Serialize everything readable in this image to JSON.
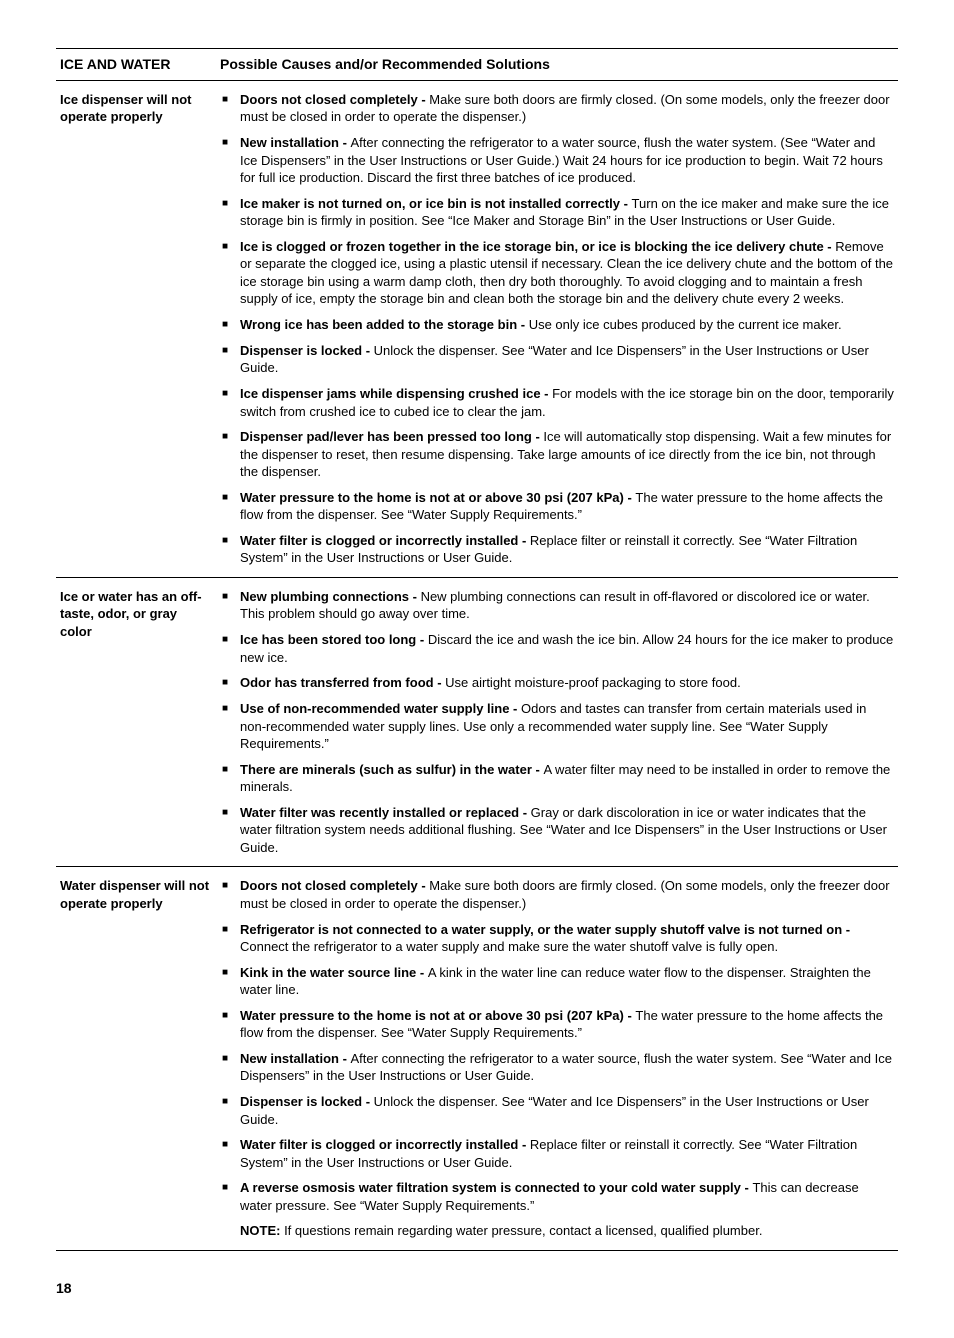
{
  "header": {
    "left": "ICE AND WATER",
    "right": "Possible Causes and/or Recommended Solutions"
  },
  "pageNumber": "18",
  "sections": [
    {
      "problem": "Ice dispenser will not operate properly",
      "items": [
        {
          "bold": "Doors not closed completely - ",
          "text": "Make sure both doors are firmly closed. (On some models, only the freezer door must be closed in order to operate the dispenser.)"
        },
        {
          "bold": "New installation - ",
          "text": "After connecting the refrigerator to a water source, flush the water system. (See “Water and Ice Dispensers” in the User Instructions or User Guide.) Wait 24 hours for ice production to begin. Wait 72 hours for full ice production. Discard the first three batches of ice produced."
        },
        {
          "bold": "Ice maker is not turned on, or ice bin is not installed correctly - ",
          "text": "Turn on the ice maker and make sure the ice storage bin is firmly in position. See “Ice Maker and Storage Bin” in the User Instructions or User Guide."
        },
        {
          "bold": "Ice is clogged or frozen together in the ice storage bin, or ice is blocking the ice delivery chute - ",
          "text": "Remove or separate the clogged ice, using a plastic utensil if necessary. Clean the ice delivery chute and the bottom of the ice storage bin using a warm damp cloth, then dry both thoroughly. To avoid clogging and to maintain a fresh supply of ice, empty the storage bin and clean both the storage bin and the delivery chute every 2 weeks."
        },
        {
          "bold": "Wrong ice has been added to the storage bin - ",
          "text": "Use only ice cubes produced by the current ice maker."
        },
        {
          "bold": "Dispenser is locked - ",
          "text": "Unlock the dispenser. See “Water and Ice Dispensers” in the User Instructions or User Guide."
        },
        {
          "bold": "Ice dispenser jams while dispensing crushed ice - ",
          "text": "For models with the ice storage bin on the door, temporarily switch from crushed ice to cubed ice to clear the jam."
        },
        {
          "bold": "Dispenser pad/lever has been pressed too long - ",
          "text": "Ice will automatically stop dispensing. Wait a few minutes for the dispenser to reset, then resume dispensing. Take large amounts of ice directly from the ice bin, not through the dispenser."
        },
        {
          "bold": "Water pressure to the home is not at or above 30 psi (207 kPa) - ",
          "text": "The water pressure to the home affects the flow from the dispenser. See “Water Supply Requirements.”"
        },
        {
          "bold": "Water filter is clogged or incorrectly installed - ",
          "text": "Replace filter or reinstall it correctly. See “Water Filtration System” in the User Instructions or User Guide."
        }
      ]
    },
    {
      "problem": "Ice or water has an off-taste, odor, or gray color",
      "items": [
        {
          "bold": "New plumbing connections - ",
          "text": "New plumbing connections can result in off-flavored or discolored ice or water. This problem should go away over time."
        },
        {
          "bold": "Ice has been stored too long - ",
          "text": "Discard the ice and wash the ice bin. Allow 24 hours for the ice maker to produce new ice."
        },
        {
          "bold": "Odor has transferred from food - ",
          "text": "Use airtight moisture-proof packaging to store food."
        },
        {
          "bold": "Use of non-recommended water supply line - ",
          "text": "Odors and tastes can transfer from certain materials used in non-recommended water supply lines. Use only a recommended water supply line. See “Water Supply Requirements.”"
        },
        {
          "bold": "There are minerals (such as sulfur) in the water - ",
          "text": "A water filter may need to be installed in order to remove the minerals."
        },
        {
          "bold": "Water filter was recently installed or replaced - ",
          "text": "Gray or dark discoloration in ice or water indicates that the water filtration system needs additional flushing. See “Water and Ice Dispensers” in the User Instructions or User Guide."
        }
      ]
    },
    {
      "problem": "Water dispenser will not operate properly",
      "items": [
        {
          "bold": "Doors not closed completely - ",
          "text": "Make sure both doors are firmly closed. (On some models, only the freezer door must be closed in order to operate the dispenser.)"
        },
        {
          "bold": "Refrigerator is not connected to a water supply, or the water supply shutoff valve is not turned on - ",
          "text": "Connect the refrigerator to a water supply and make sure the water shutoff valve is fully open."
        },
        {
          "bold": "Kink in the water source line - ",
          "text": "A kink in the water line can reduce water flow to the dispenser. Straighten the water line."
        },
        {
          "bold": "Water pressure to the home is not at or above 30 psi (207 kPa) - ",
          "text": "The water pressure to the home affects the flow from the dispenser. See “Water Supply Requirements.”"
        },
        {
          "bold": "New installation - ",
          "text": "After connecting the refrigerator to a water source, flush the water system. See “Water and Ice Dispensers” in the User Instructions or User Guide."
        },
        {
          "bold": "Dispenser is locked - ",
          "text": "Unlock the dispenser. See “Water and Ice Dispensers” in the User Instructions or User Guide."
        },
        {
          "bold": "Water filter is clogged or incorrectly installed - ",
          "text": "Replace filter or reinstall it correctly. See “Water Filtration System” in the User Instructions or User Guide."
        },
        {
          "bold": "A reverse osmosis water filtration system is connected to your cold water supply - ",
          "text": "This can decrease water pressure. See “Water Supply Requirements.”"
        }
      ],
      "note": {
        "bold": "NOTE: ",
        "text": "If questions remain regarding water pressure, contact a licensed, qualified plumber."
      }
    }
  ]
}
